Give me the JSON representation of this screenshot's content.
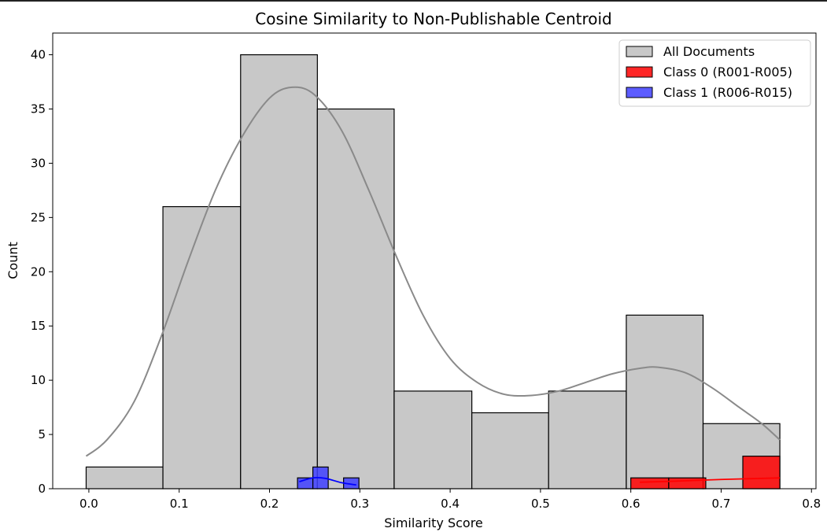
{
  "chart_data": {
    "type": "bar",
    "title": "Cosine Similarity to Non-Publishable Centroid",
    "xlabel": "Similarity Score",
    "ylabel": "Count",
    "xlim": [
      -0.04,
      0.805
    ],
    "ylim": [
      0,
      42
    ],
    "x_ticks": [
      0.0,
      0.1,
      0.2,
      0.3,
      0.4,
      0.5,
      0.6,
      0.7,
      0.8
    ],
    "x_tick_labels": [
      "0.0",
      "0.1",
      "0.2",
      "0.3",
      "0.4",
      "0.5",
      "0.6",
      "0.7",
      "0.8"
    ],
    "y_ticks": [
      0,
      5,
      10,
      15,
      20,
      25,
      30,
      35,
      40
    ],
    "y_tick_labels": [
      "0",
      "5",
      "10",
      "15",
      "20",
      "25",
      "30",
      "35",
      "40"
    ],
    "grid": false,
    "legend_position": "top-right",
    "series": [
      {
        "name": "All Documents",
        "color": "#c8c8c8",
        "kde_color": "#8a8a8a",
        "bins": [
          {
            "x0": -0.003,
            "x1": 0.082,
            "count": 2
          },
          {
            "x0": 0.082,
            "x1": 0.168,
            "count": 26
          },
          {
            "x0": 0.168,
            "x1": 0.253,
            "count": 40
          },
          {
            "x0": 0.253,
            "x1": 0.338,
            "count": 35
          },
          {
            "x0": 0.338,
            "x1": 0.424,
            "count": 9
          },
          {
            "x0": 0.424,
            "x1": 0.509,
            "count": 7
          },
          {
            "x0": 0.509,
            "x1": 0.595,
            "count": 9
          },
          {
            "x0": 0.595,
            "x1": 0.68,
            "count": 16
          },
          {
            "x0": 0.68,
            "x1": 0.765,
            "count": 6
          }
        ],
        "kde": [
          [
            -0.003,
            3.0
          ],
          [
            0.02,
            4.5
          ],
          [
            0.05,
            8.0
          ],
          [
            0.08,
            14.0
          ],
          [
            0.11,
            21.0
          ],
          [
            0.14,
            27.5
          ],
          [
            0.17,
            32.5
          ],
          [
            0.2,
            36.0
          ],
          [
            0.225,
            37.0
          ],
          [
            0.25,
            36.3
          ],
          [
            0.28,
            33.0
          ],
          [
            0.31,
            27.5
          ],
          [
            0.34,
            21.5
          ],
          [
            0.37,
            16.0
          ],
          [
            0.4,
            12.0
          ],
          [
            0.43,
            9.8
          ],
          [
            0.46,
            8.7
          ],
          [
            0.49,
            8.6
          ],
          [
            0.52,
            9.0
          ],
          [
            0.55,
            9.8
          ],
          [
            0.58,
            10.6
          ],
          [
            0.61,
            11.1
          ],
          [
            0.63,
            11.2
          ],
          [
            0.66,
            10.7
          ],
          [
            0.69,
            9.3
          ],
          [
            0.72,
            7.5
          ],
          [
            0.745,
            6.0
          ],
          [
            0.765,
            4.5
          ]
        ]
      },
      {
        "name": "Class 0 (R001-R005)",
        "color": "#ff0000",
        "kde_color": "#ff0000",
        "bins": [
          {
            "x0": 0.6,
            "x1": 0.642,
            "count": 1
          },
          {
            "x0": 0.642,
            "x1": 0.683,
            "count": 1
          },
          {
            "x0": 0.724,
            "x1": 0.765,
            "count": 3
          }
        ],
        "kde": [
          [
            0.61,
            0.6
          ],
          [
            0.65,
            0.7
          ],
          [
            0.7,
            0.85
          ],
          [
            0.765,
            1.0
          ]
        ]
      },
      {
        "name": "Class 1 (R006-R015)",
        "color": "#4040ff",
        "kde_color": "#0000ff",
        "bins": [
          {
            "x0": 0.231,
            "x1": 0.248,
            "count": 1
          },
          {
            "x0": 0.248,
            "x1": 0.265,
            "count": 2
          },
          {
            "x0": 0.282,
            "x1": 0.299,
            "count": 1
          }
        ],
        "kde": [
          [
            0.233,
            0.65
          ],
          [
            0.248,
            1.0
          ],
          [
            0.262,
            0.95
          ],
          [
            0.28,
            0.55
          ],
          [
            0.296,
            0.35
          ]
        ]
      }
    ]
  }
}
